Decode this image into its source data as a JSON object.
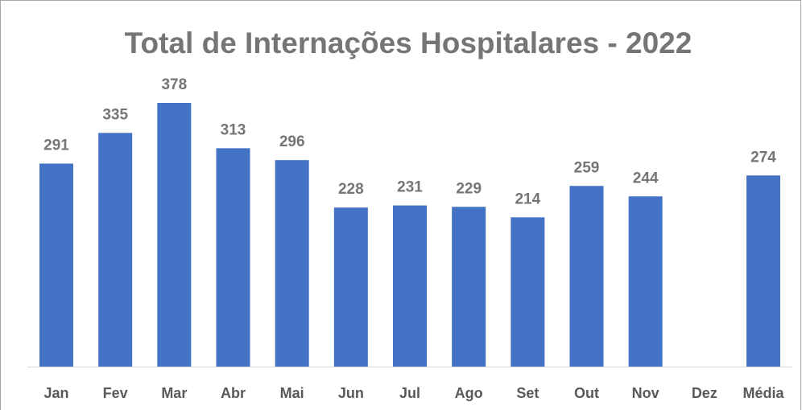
{
  "chart_data": {
    "type": "bar",
    "title": "Total de Internações Hospitalares - 2022",
    "categories": [
      "Jan",
      "Fev",
      "Mar",
      "Abr",
      "Mai",
      "Jun",
      "Jul",
      "Ago",
      "Set",
      "Out",
      "Nov",
      "Dez",
      "Média"
    ],
    "values": [
      291,
      335,
      378,
      313,
      296,
      228,
      231,
      229,
      214,
      259,
      244,
      null,
      274
    ],
    "color": "#4472c4"
  }
}
